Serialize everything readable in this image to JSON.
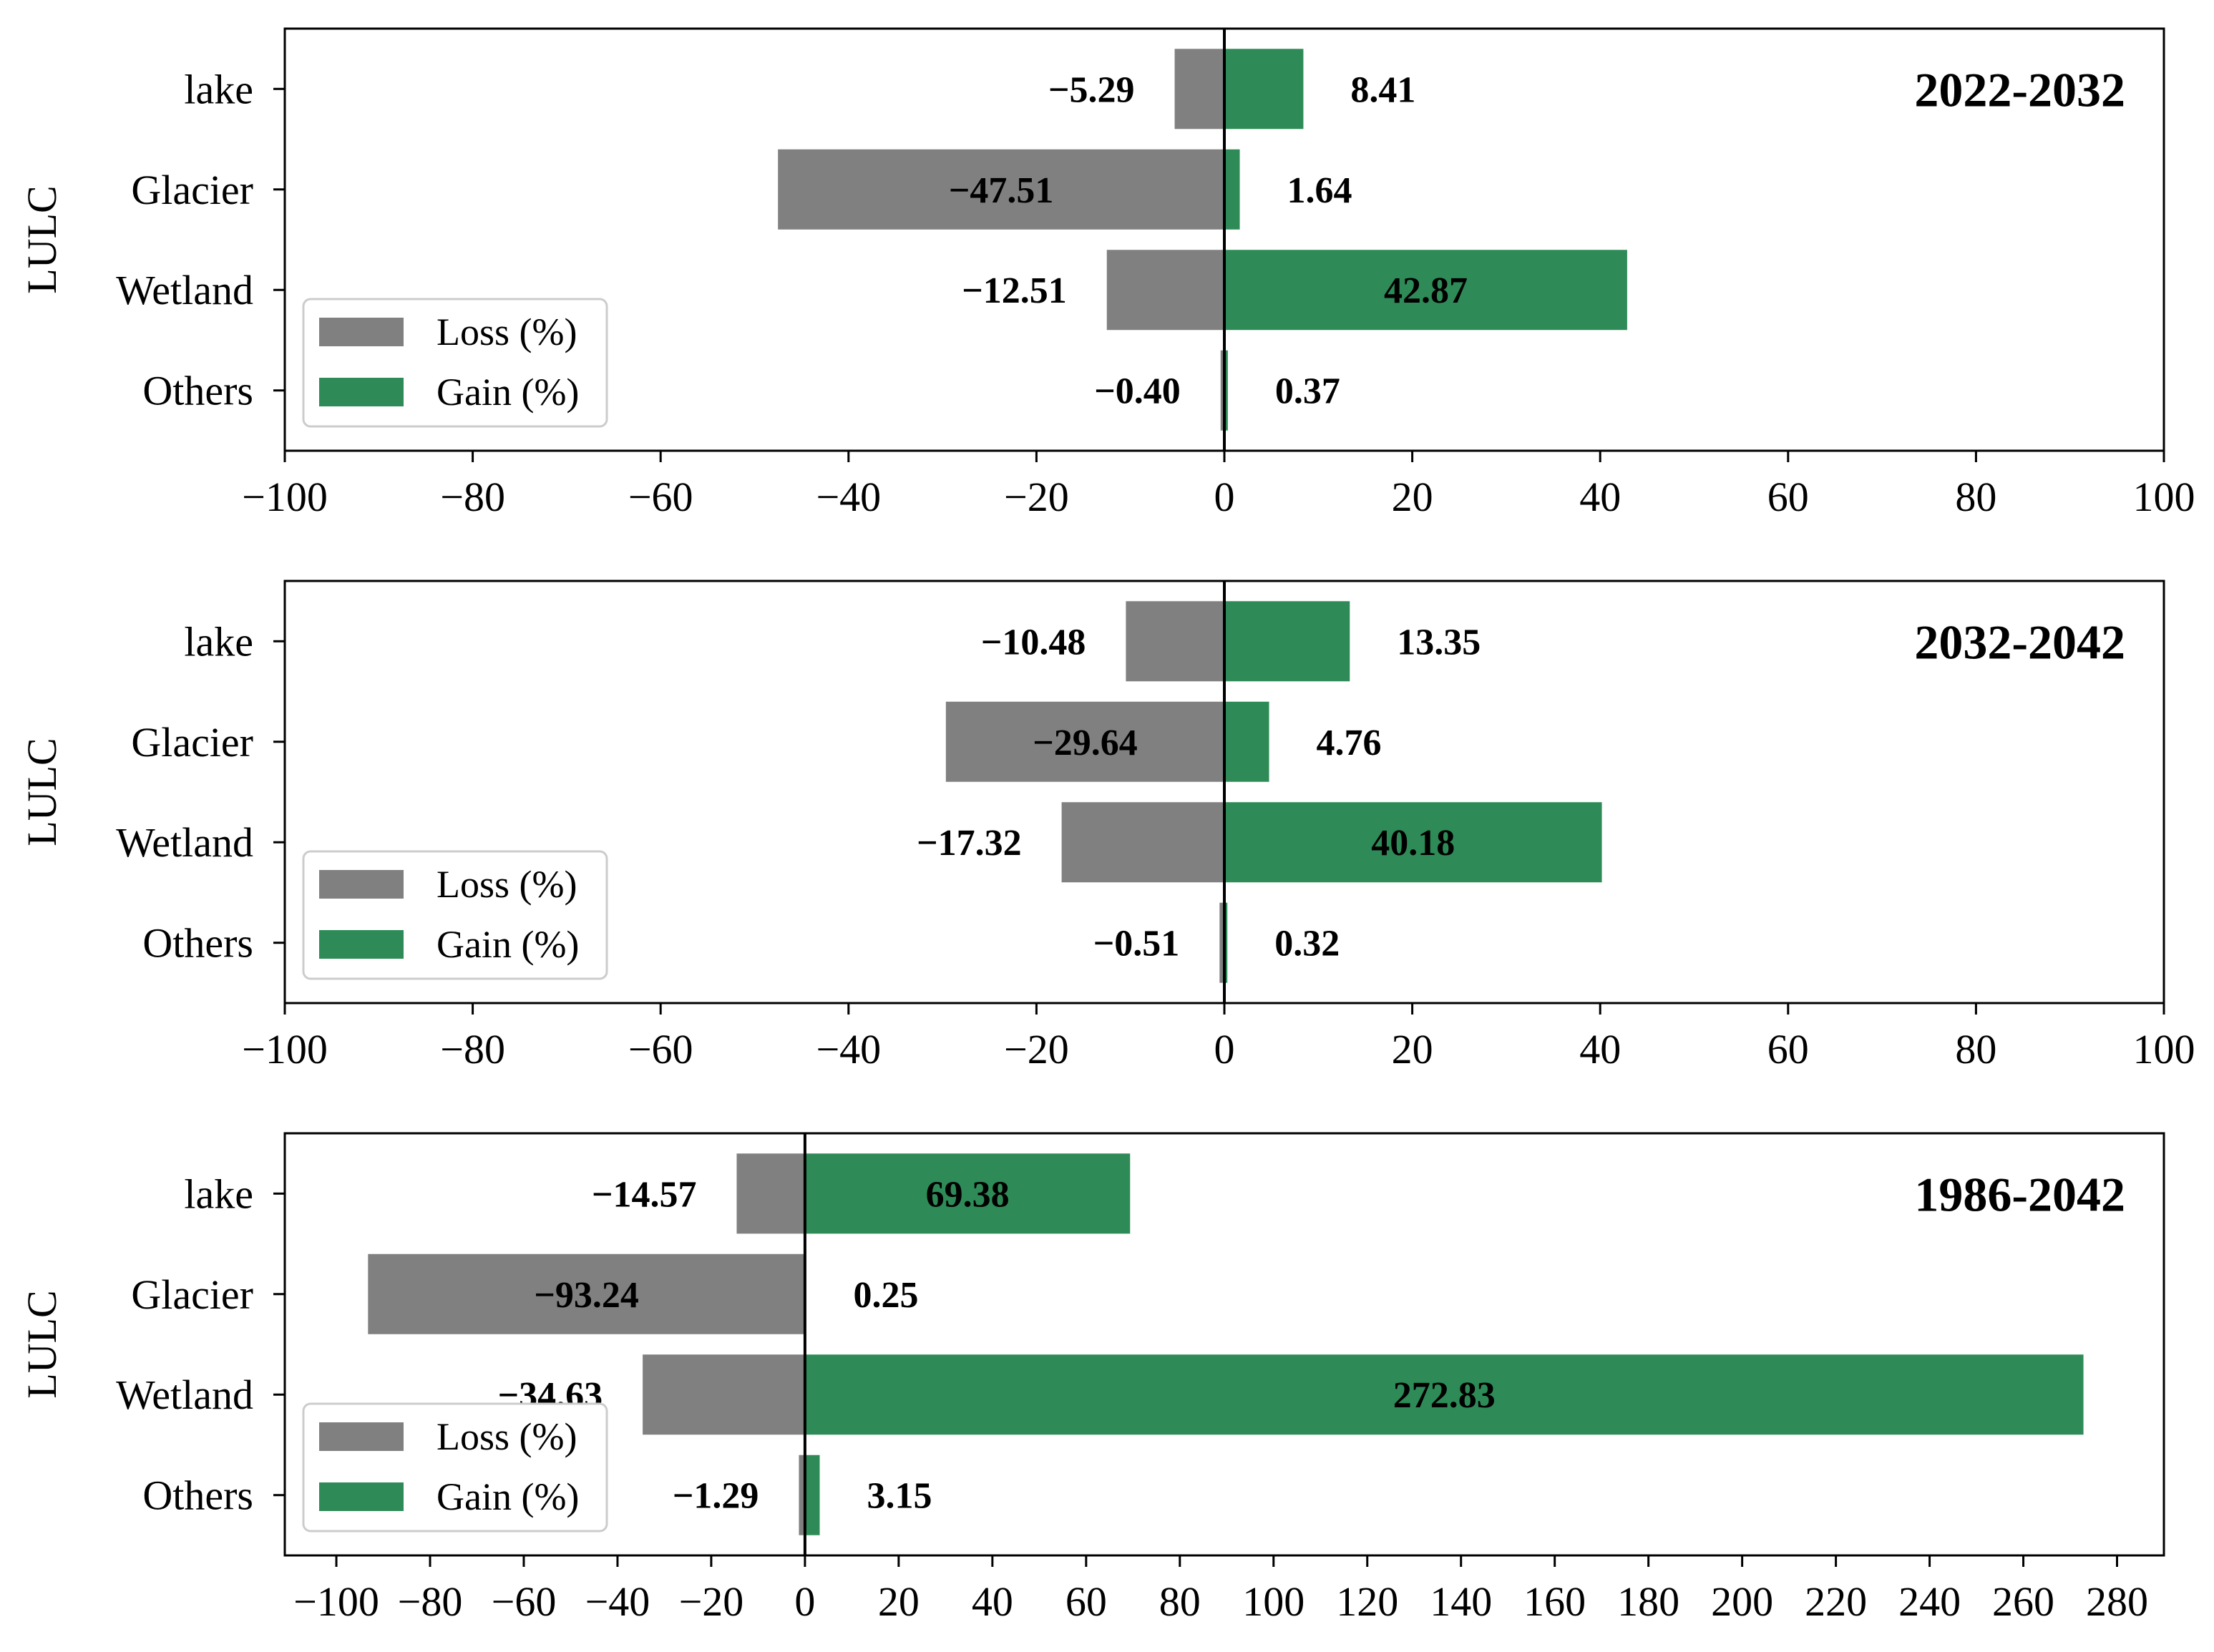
{
  "colors": {
    "loss": "#808080",
    "gain": "#2e8b57"
  },
  "legend": {
    "loss_label": "Loss (%)",
    "gain_label": "Gain (%)"
  },
  "chart_data": [
    {
      "type": "bar",
      "orientation": "horizontal",
      "period": "2022-2032",
      "ylabel": "LULC",
      "categories": [
        "lake",
        "Glacier",
        "Wetland",
        "Others"
      ],
      "series": [
        {
          "name": "Loss (%)",
          "values": [
            -5.29,
            -47.51,
            -12.51,
            -0.4
          ],
          "labels": [
            "−5.29",
            "−47.51",
            "−12.51",
            "−0.40"
          ]
        },
        {
          "name": "Gain (%)",
          "values": [
            8.41,
            1.64,
            42.87,
            0.37
          ],
          "labels": [
            "8.41",
            "1.64",
            "42.87",
            "0.37"
          ]
        }
      ],
      "xlim": [
        -100,
        100
      ],
      "xticks": [
        -100,
        -80,
        -60,
        -40,
        -20,
        0,
        20,
        40,
        60,
        80,
        100
      ],
      "xtick_labels": [
        "−100",
        "−80",
        "−60",
        "−40",
        "−20",
        "0",
        "20",
        "40",
        "60",
        "80",
        "100"
      ],
      "legend_position": "lower-left"
    },
    {
      "type": "bar",
      "orientation": "horizontal",
      "period": "2032-2042",
      "ylabel": "LULC",
      "categories": [
        "lake",
        "Glacier",
        "Wetland",
        "Others"
      ],
      "series": [
        {
          "name": "Loss (%)",
          "values": [
            -10.48,
            -29.64,
            -17.32,
            -0.51
          ],
          "labels": [
            "−10.48",
            "−29.64",
            "−17.32",
            "−0.51"
          ]
        },
        {
          "name": "Gain (%)",
          "values": [
            13.35,
            4.76,
            40.18,
            0.32
          ],
          "labels": [
            "13.35",
            "4.76",
            "40.18",
            "0.32"
          ]
        }
      ],
      "xlim": [
        -100,
        100
      ],
      "xticks": [
        -100,
        -80,
        -60,
        -40,
        -20,
        0,
        20,
        40,
        60,
        80,
        100
      ],
      "xtick_labels": [
        "−100",
        "−80",
        "−60",
        "−40",
        "−20",
        "0",
        "20",
        "40",
        "60",
        "80",
        "100"
      ],
      "legend_position": "lower-left"
    },
    {
      "type": "bar",
      "orientation": "horizontal",
      "period": "1986-2042",
      "ylabel": "LULC",
      "categories": [
        "lake",
        "Glacier",
        "Wetland",
        "Others"
      ],
      "series": [
        {
          "name": "Loss (%)",
          "values": [
            -14.57,
            -93.24,
            -34.63,
            -1.29
          ],
          "labels": [
            "−14.57",
            "−93.24",
            "−34.63",
            "−1.29"
          ]
        },
        {
          "name": "Gain (%)",
          "values": [
            69.38,
            0.25,
            272.83,
            3.15
          ],
          "labels": [
            "69.38",
            "0.25",
            "272.83",
            "3.15"
          ]
        }
      ],
      "xlim": [
        -111,
        290
      ],
      "xticks": [
        -100,
        -80,
        -60,
        -40,
        -20,
        0,
        20,
        40,
        60,
        80,
        100,
        120,
        140,
        160,
        180,
        200,
        220,
        240,
        260,
        280
      ],
      "xtick_labels": [
        "−100",
        "−80",
        "−60",
        "−40",
        "−20",
        "0",
        "20",
        "40",
        "60",
        "80",
        "100",
        "120",
        "140",
        "160",
        "180",
        "200",
        "220",
        "240",
        "260",
        "280"
      ],
      "legend_position": "lower-left"
    }
  ]
}
